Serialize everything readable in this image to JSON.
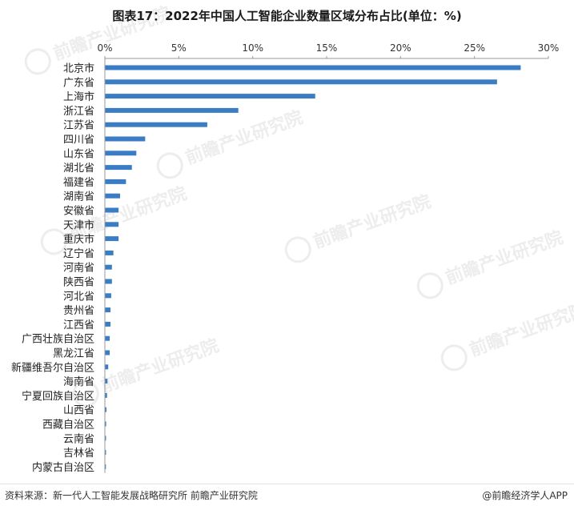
{
  "title": "图表17：2022年中国人工智能企业数量区域分布占比(单位：%)",
  "source": "资料来源：新一代人工智能发展战略研究所 前瞻产业研究院",
  "brand": "@前瞻经济学人APP",
  "watermark": "前瞻产业研究院",
  "colors": {
    "bar": "#3b7dc4",
    "axis": "#9a9a9a"
  },
  "chart_data": {
    "type": "bar",
    "orientation": "horizontal",
    "title": "图表17：2022年中国人工智能企业数量区域分布占比(单位：%)",
    "xlabel": "",
    "ylabel": "",
    "xlim": [
      0,
      30
    ],
    "x_ticks": [
      0,
      5,
      10,
      15,
      20,
      25,
      30
    ],
    "x_tick_labels": [
      "0%",
      "5%",
      "10%",
      "15%",
      "20%",
      "25%",
      "30%"
    ],
    "x_axis_position": "top",
    "grid": false,
    "categories": [
      "北京市",
      "广东省",
      "上海市",
      "浙江省",
      "江苏省",
      "四川省",
      "山东省",
      "湖北省",
      "福建省",
      "湖南省",
      "安徽省",
      "天津市",
      "重庆市",
      "辽宁省",
      "河南省",
      "陕西省",
      "河北省",
      "贵州省",
      "江西省",
      "广西壮族自治区",
      "黑龙江省",
      "新疆维吾尔自治区",
      "海南省",
      "宁夏回族自治区",
      "山西省",
      "西藏自治区",
      "云南省",
      "吉林省",
      "内蒙古自治区"
    ],
    "values": [
      28.1,
      26.5,
      14.2,
      9.0,
      6.9,
      2.7,
      2.1,
      1.8,
      1.4,
      1.0,
      0.9,
      0.9,
      0.9,
      0.55,
      0.45,
      0.45,
      0.4,
      0.35,
      0.35,
      0.3,
      0.3,
      0.2,
      0.15,
      0.12,
      0.08,
      0.06,
      0.05,
      0.05,
      0.04
    ]
  }
}
